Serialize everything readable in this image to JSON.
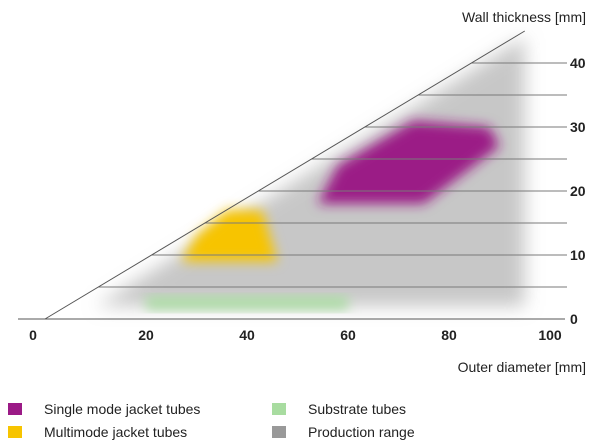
{
  "chart_data": {
    "type": "area",
    "xlabel": "Outer diameter [mm]",
    "ylabel": "Wall thickness [mm]",
    "xlim": [
      0,
      100
    ],
    "ylim": [
      0,
      40
    ],
    "x_ticks": [
      0,
      20,
      40,
      60,
      80,
      100
    ],
    "y_ticks": [
      0,
      10,
      20,
      30,
      40
    ],
    "y_gridlines": [
      5,
      10,
      15,
      20,
      25,
      30,
      35,
      40
    ],
    "boundary_line": {
      "x": [
        0,
        95
      ],
      "y": [
        0,
        45
      ]
    },
    "regions": [
      {
        "name": "Production range",
        "color": "#999999",
        "polygon": [
          [
            10,
            2
          ],
          [
            95,
            2
          ],
          [
            95,
            44
          ],
          [
            10,
            2
          ]
        ]
      },
      {
        "name": "Substrate tubes",
        "color": "#a8dca0",
        "polygon": [
          [
            20,
            1.5
          ],
          [
            60,
            1.5
          ],
          [
            60,
            3.5
          ],
          [
            20,
            3.5
          ]
        ]
      },
      {
        "name": "Multimode jacket tubes",
        "color": "#f7c400",
        "polygon": [
          [
            27,
            9
          ],
          [
            46,
            9
          ],
          [
            43,
            17
          ],
          [
            36,
            17
          ],
          [
            30,
            13
          ]
        ]
      },
      {
        "name": "Single mode jacket tubes",
        "color": "#9b1a86",
        "polygon": [
          [
            54,
            18
          ],
          [
            75,
            18
          ],
          [
            90,
            27
          ],
          [
            88,
            30
          ],
          [
            73,
            31
          ],
          [
            58,
            24
          ]
        ]
      }
    ],
    "legend": [
      {
        "name": "Single mode jacket tubes",
        "color": "#9b1a86"
      },
      {
        "name": "Multimode jacket tubes",
        "color": "#f7c400"
      },
      {
        "name": "Substrate tubes",
        "color": "#a8dca0"
      },
      {
        "name": "Production range",
        "color": "#999999"
      }
    ],
    "legend_placement": "bottom"
  }
}
